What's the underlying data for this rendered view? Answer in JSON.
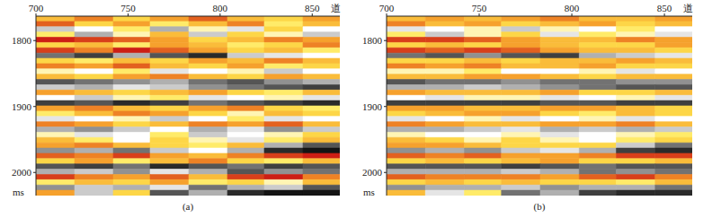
{
  "chart_data": [
    {
      "type": "heatmap",
      "title": "(a)",
      "x_label": "道",
      "y_label": "ms",
      "xlim": [
        700,
        865
      ],
      "ylim": [
        1763,
        2035
      ],
      "xticks": [
        700,
        750,
        800,
        850
      ],
      "yticks": [
        1800,
        1900,
        2000
      ],
      "zlim": [
        -9,
        9
      ],
      "x_edges": [
        700,
        721,
        742,
        762,
        783,
        804,
        824,
        845,
        865
      ],
      "y_edges": [
        1763,
        1771,
        1779,
        1787,
        1795,
        1803,
        1811,
        1819,
        1827,
        1835,
        1843,
        1851,
        1859,
        1867,
        1875,
        1883,
        1891,
        1899,
        1907,
        1915,
        1923,
        1931,
        1939,
        1947,
        1955,
        1963,
        1971,
        1979,
        1987,
        1995,
        2003,
        2011,
        2019,
        2027,
        2035
      ],
      "cells": [
        [
          4,
          6,
          3,
          5,
          7,
          4,
          3,
          5
        ],
        [
          7,
          3,
          5,
          2,
          4,
          6,
          2,
          4
        ],
        [
          -2,
          0,
          2,
          -3,
          1,
          -1,
          3,
          0
        ],
        [
          2,
          -3,
          1,
          4,
          -2,
          3,
          1,
          -2
        ],
        [
          9,
          8,
          7,
          5,
          3,
          4,
          6,
          5
        ],
        [
          3,
          4,
          2,
          5,
          4,
          2,
          3,
          6
        ],
        [
          8,
          6,
          9,
          7,
          5,
          3,
          4,
          2
        ],
        [
          -5,
          -7,
          -3,
          -6,
          -8,
          -2,
          -1,
          0
        ],
        [
          3,
          2,
          4,
          3,
          5,
          4,
          6,
          4
        ],
        [
          6,
          5,
          7,
          4,
          3,
          5,
          2,
          3
        ],
        [
          1,
          0,
          2,
          -1,
          0,
          1,
          -2,
          0
        ],
        [
          4,
          3,
          5,
          6,
          4,
          3,
          5,
          4
        ],
        [
          -6,
          -5,
          -4,
          -3,
          -5,
          -6,
          -4,
          -3
        ],
        [
          -2,
          -3,
          -1,
          -2,
          -4,
          -5,
          -6,
          -7
        ],
        [
          5,
          4,
          3,
          4,
          5,
          3,
          2,
          4
        ],
        [
          0,
          -2,
          1,
          2,
          -1,
          0,
          1,
          -1
        ],
        [
          -7,
          -6,
          -8,
          -7,
          -5,
          -6,
          -7,
          -8
        ],
        [
          5,
          6,
          4,
          3,
          5,
          6,
          3,
          2
        ],
        [
          2,
          4,
          6,
          5,
          3,
          1,
          4,
          3
        ],
        [
          -1,
          0,
          1,
          -2,
          0,
          2,
          -1,
          0
        ],
        [
          6,
          5,
          3,
          4,
          6,
          5,
          7,
          4
        ],
        [
          -3,
          -4,
          -2,
          0,
          -3,
          -1,
          -4,
          -2
        ],
        [
          1,
          -1,
          0,
          2,
          -2,
          0,
          1,
          3
        ],
        [
          4,
          2,
          0,
          3,
          1,
          -1,
          2,
          4
        ],
        [
          5,
          6,
          4,
          3,
          2,
          4,
          -3,
          -6
        ],
        [
          -4,
          -3,
          -5,
          -2,
          0,
          -3,
          -8,
          -9
        ],
        [
          7,
          6,
          8,
          5,
          4,
          6,
          8,
          9
        ],
        [
          3,
          5,
          2,
          4,
          6,
          3,
          2,
          4
        ],
        [
          -6,
          -7,
          -5,
          -8,
          -6,
          -5,
          -7,
          -6
        ],
        [
          -3,
          -2,
          -4,
          -1,
          -3,
          -6,
          -4,
          -5
        ],
        [
          8,
          6,
          5,
          7,
          4,
          8,
          9,
          6
        ],
        [
          2,
          4,
          3,
          5,
          2,
          3,
          1,
          4
        ],
        [
          -4,
          -2,
          -3,
          -1,
          -5,
          -3,
          -2,
          -6
        ],
        [
          5,
          -2,
          3,
          -6,
          -3,
          -8,
          -9,
          -9
        ]
      ]
    },
    {
      "type": "heatmap",
      "title": "(b)",
      "x_label": "道",
      "y_label": "ms",
      "xlim": [
        700,
        865
      ],
      "ylim": [
        1763,
        2035
      ],
      "xticks": [
        700,
        750,
        800,
        850
      ],
      "yticks": [
        1800,
        1900,
        2000
      ],
      "zlim": [
        -9,
        9
      ],
      "x_edges": [
        700,
        721,
        742,
        762,
        783,
        804,
        824,
        845,
        865
      ],
      "y_edges": [
        1763,
        1771,
        1779,
        1787,
        1795,
        1803,
        1811,
        1819,
        1827,
        1835,
        1843,
        1851,
        1859,
        1867,
        1875,
        1883,
        1891,
        1899,
        1907,
        1915,
        1923,
        1931,
        1939,
        1947,
        1955,
        1963,
        1971,
        1979,
        1987,
        1995,
        2003,
        2011,
        2019,
        2027,
        2035
      ],
      "cells": [
        [
          4,
          5,
          4,
          5,
          6,
          4,
          4,
          5
        ],
        [
          6,
          4,
          5,
          3,
          4,
          5,
          3,
          4
        ],
        [
          -1,
          0,
          1,
          -2,
          1,
          0,
          2,
          0
        ],
        [
          2,
          -2,
          1,
          3,
          -1,
          2,
          1,
          -1
        ],
        [
          8,
          8,
          7,
          5,
          4,
          4,
          6,
          5
        ],
        [
          3,
          4,
          3,
          5,
          4,
          3,
          3,
          5
        ],
        [
          8,
          7,
          8,
          7,
          5,
          4,
          4,
          3
        ],
        [
          -5,
          -6,
          -4,
          -6,
          -7,
          -3,
          -2,
          -1
        ],
        [
          3,
          3,
          4,
          3,
          4,
          4,
          5,
          4
        ],
        [
          6,
          5,
          6,
          4,
          4,
          5,
          3,
          3
        ],
        [
          1,
          1,
          2,
          0,
          0,
          1,
          -1,
          0
        ],
        [
          4,
          4,
          5,
          5,
          4,
          3,
          4,
          4
        ],
        [
          -6,
          -5,
          -5,
          -4,
          -5,
          -5,
          -4,
          -4
        ],
        [
          -3,
          -3,
          -2,
          -3,
          -4,
          -5,
          -6,
          -6
        ],
        [
          5,
          4,
          4,
          4,
          5,
          3,
          3,
          4
        ],
        [
          0,
          -1,
          1,
          1,
          -1,
          0,
          1,
          -1
        ],
        [
          -7,
          -7,
          -7,
          -7,
          -6,
          -6,
          -7,
          -7
        ],
        [
          5,
          5,
          4,
          4,
          5,
          5,
          4,
          3
        ],
        [
          3,
          4,
          5,
          5,
          3,
          2,
          4,
          3
        ],
        [
          -1,
          0,
          1,
          -1,
          0,
          1,
          -1,
          0
        ],
        [
          6,
          5,
          4,
          4,
          5,
          5,
          6,
          4
        ],
        [
          -3,
          -3,
          -2,
          -1,
          -3,
          -2,
          -3,
          -2
        ],
        [
          1,
          0,
          0,
          1,
          -1,
          0,
          1,
          2
        ],
        [
          4,
          3,
          1,
          3,
          1,
          0,
          2,
          3
        ],
        [
          5,
          5,
          4,
          3,
          3,
          3,
          -2,
          -5
        ],
        [
          -4,
          -3,
          -4,
          -2,
          -1,
          -3,
          -7,
          -8
        ],
        [
          7,
          6,
          7,
          5,
          5,
          6,
          8,
          8
        ],
        [
          3,
          4,
          3,
          4,
          5,
          3,
          3,
          4
        ],
        [
          -6,
          -6,
          -6,
          -7,
          -6,
          -5,
          -6,
          -6
        ],
        [
          -3,
          -3,
          -3,
          -2,
          -3,
          -5,
          -4,
          -5
        ],
        [
          7,
          6,
          6,
          6,
          5,
          7,
          8,
          6
        ],
        [
          3,
          4,
          3,
          4,
          3,
          3,
          2,
          4
        ],
        [
          -4,
          -3,
          -3,
          -2,
          -4,
          -3,
          -3,
          -5
        ],
        [
          4,
          -1,
          2,
          -5,
          -3,
          -7,
          -8,
          -8
        ]
      ]
    }
  ]
}
